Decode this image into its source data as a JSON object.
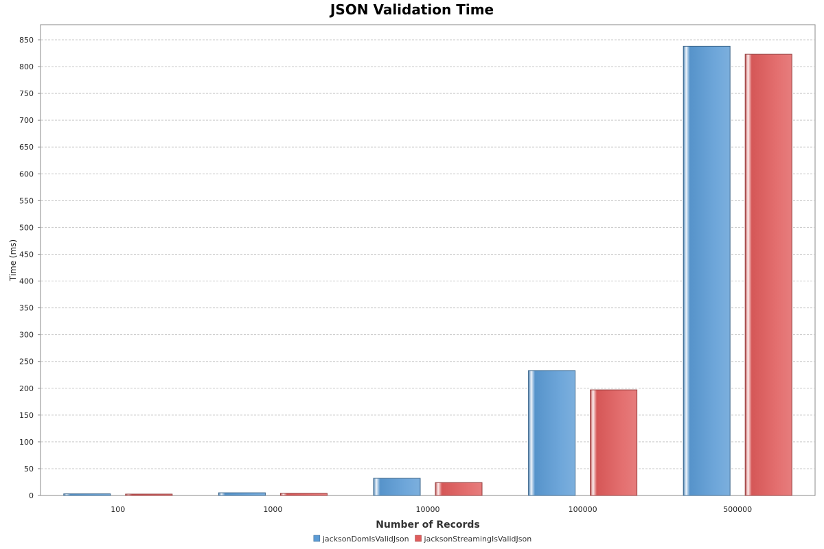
{
  "chart_data": {
    "type": "bar",
    "title": "JSON Validation Time",
    "xlabel": "Number of Records",
    "ylabel": "Time (ms)",
    "categories": [
      "100",
      "1000",
      "10000",
      "100000",
      "500000"
    ],
    "series": [
      {
        "name": "jacksonDomIsValidJson",
        "values": [
          3,
          5,
          32,
          233,
          838
        ],
        "color": "#5b9bd5"
      },
      {
        "name": "jacksonStreamingIsValidJson",
        "values": [
          2,
          4,
          24,
          197,
          823
        ],
        "color": "#e05c5c"
      }
    ],
    "ylim": [
      0,
      850
    ],
    "yticks": [
      0,
      50,
      100,
      150,
      200,
      250,
      300,
      350,
      400,
      450,
      500,
      550,
      600,
      650,
      700,
      750,
      800,
      850
    ],
    "grid": true,
    "legend_position": "bottom"
  }
}
